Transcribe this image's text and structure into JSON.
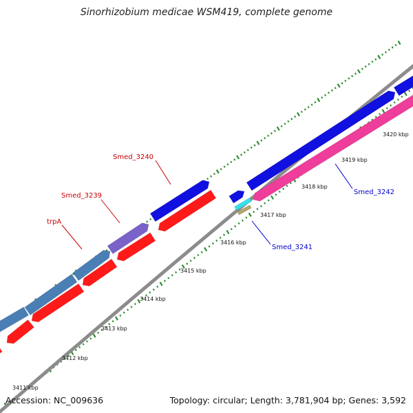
{
  "title": "Sinorhizobium medicae WSM419, complete genome",
  "footer": {
    "accession": "Accession: NC_009636",
    "summary": "Topology: circular; Length: 3,781,904 bp; Genes: 3,592"
  },
  "colors": {
    "backbone": "#8c8c8c",
    "tick": "#2e8b2e",
    "forward_cds": "#1010e0",
    "forward_cds_alt": "#4a7fb5",
    "forward_cds_purple": "#7a62c8",
    "reverse_cds": "#ff1a1a",
    "pink_cds": "#ee3d9a",
    "cyan_cds": "#36e0e8",
    "tan_cds": "#b3a46a",
    "label_red": "#cc0000",
    "label_blue": "#0000cc"
  },
  "scale_labels": [
    "3411 kbp",
    "3412 kbp",
    "3413 kbp",
    "3414 kbp",
    "3415 kbp",
    "3416 kbp",
    "3417 kbp",
    "3418 kbp",
    "3419 kbp",
    "3420 kbp"
  ],
  "gene_labels": [
    {
      "id": "trpA",
      "text": "trpA",
      "color": "red"
    },
    {
      "id": "smed3239",
      "text": "Smed_3239",
      "color": "red"
    },
    {
      "id": "smed3240",
      "text": "Smed_3240",
      "color": "red"
    },
    {
      "id": "smed3241",
      "text": "Smed_3241",
      "color": "blue"
    },
    {
      "id": "smed3242",
      "text": "Smed_3242",
      "color": "blue"
    }
  ]
}
